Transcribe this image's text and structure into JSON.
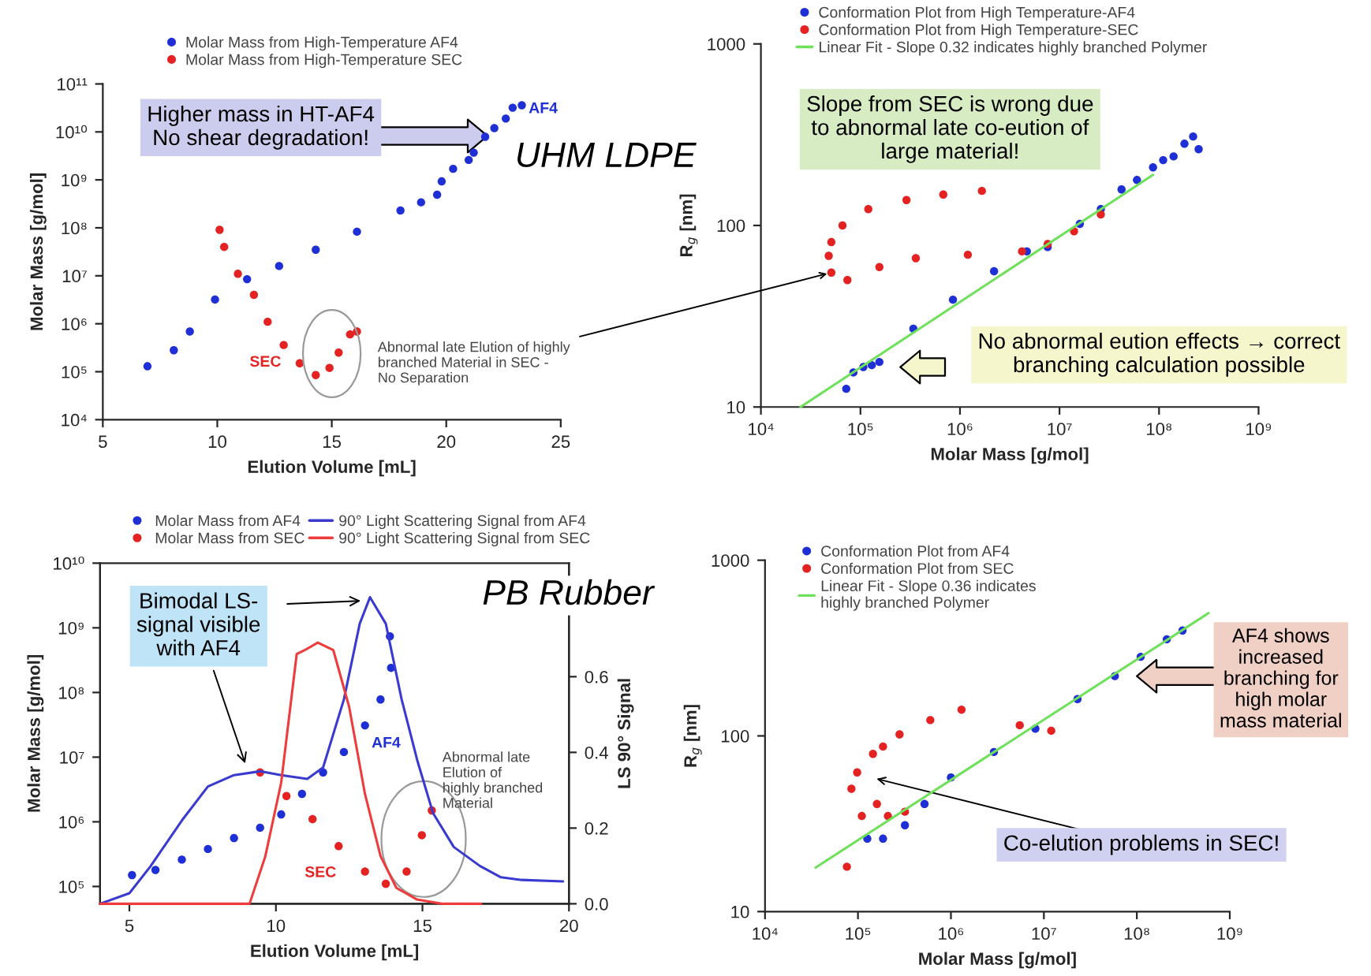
{
  "chart_data": [
    {
      "type": "scatter",
      "xlabel": "Elution Volume [mL]",
      "ylabel": "Molar Mass [g/mol]",
      "log": "y",
      "xlim": [
        5,
        25
      ],
      "xticks": [
        5,
        10,
        15,
        20,
        25
      ],
      "ylim": [
        10000.0,
        100000000000.0
      ],
      "yticks": [
        {
          "value": 10000.0,
          "label": "10⁴"
        },
        {
          "value": 100000.0,
          "label": "10⁵"
        },
        {
          "value": 1000000.0,
          "label": "10⁶"
        },
        {
          "value": 10000000.0,
          "label": "10⁷"
        },
        {
          "value": 100000000.0,
          "label": "10⁸"
        },
        {
          "value": 1000000000.0,
          "label": "10⁹"
        },
        {
          "value": 10000000000.0,
          "label": "10¹⁰"
        },
        {
          "value": 100000000000.0,
          "label": "10¹¹"
        }
      ],
      "legend": "top left",
      "series": [
        {
          "name": "Molar Mass from High-Temperature AF4",
          "marker": "circle",
          "color": "#1f2fd6",
          "x": [
            6.95,
            8.1,
            8.8,
            9.9,
            11.3,
            12.7,
            14.3,
            16.1,
            18.0,
            18.9,
            19.6,
            19.8,
            20.3,
            20.98,
            21.2,
            21.7,
            22.1,
            22.6,
            22.9,
            23.3
          ],
          "values": [
            130000.0,
            280000.0,
            690000.0,
            3200000.0,
            8500000.0,
            16000000.0,
            35000000.0,
            83000000.0,
            230000000.0,
            340000000.0,
            490000000.0,
            930000000.0,
            1700000000.0,
            2600000000.0,
            3700000000.0,
            7900000000.0,
            12000000000.0,
            19000000000.0,
            32000000000.0,
            36000000000.0
          ]
        },
        {
          "name": "Molar Mass from High-Temperature SEC",
          "marker": "circle",
          "color": "#e52222",
          "x": [
            10.1,
            10.3,
            10.9,
            11.6,
            12.2,
            12.9,
            13.6,
            14.3,
            14.9,
            15.3,
            15.8,
            16.1
          ],
          "values": [
            91000000.0,
            40000000.0,
            11000000.0,
            4000000.0,
            1100000.0,
            360000.0,
            150000.0,
            85000.0,
            120000.0,
            250000.0,
            600000.0,
            690000.0
          ]
        }
      ],
      "annotations": [
        "Higher mass in HT-AF4\nNo shear degradation!",
        "AF4",
        "SEC",
        "UHM LDPE"
      ]
    },
    {
      "type": "scatter",
      "xlabel": "Molar Mass [g/mol]",
      "ylabel": "R$_{g}$ [nm]",
      "log": "xy",
      "xlim": [
        10000.0,
        1000000000.0
      ],
      "xticks": [
        {
          "value": 10000.0,
          "label": "10⁴"
        },
        {
          "value": 100000.0,
          "label": "10⁵"
        },
        {
          "value": 1000000.0,
          "label": "10⁶"
        },
        {
          "value": 10000000.0,
          "label": "10⁷"
        },
        {
          "value": 100000000.0,
          "label": "10⁸"
        },
        {
          "value": 1000000000.0,
          "label": "10⁹"
        }
      ],
      "ylim": [
        10,
        1000
      ],
      "yticks": [
        10,
        100,
        1000
      ],
      "legend": "top left",
      "series": [
        {
          "name": "Conformation Plot from High Temperature-AF4",
          "marker": "circle",
          "color": "#1f2fd6",
          "x": [
            72000.0,
            85000.0,
            107000.0,
            130000.0,
            155000.0,
            340000.0,
            850000.0,
            2200000.0,
            4700000.0,
            7600000.0,
            16000000.0,
            26000000.0,
            42000000.0,
            60000000.0,
            87000000.0,
            110000000.0,
            140000000.0,
            180000000.0,
            220000000.0,
            250000000.0
          ],
          "values": [
            12.6,
            15.5,
            16.6,
            17,
            17.7,
            27,
            39,
            56,
            72,
            76,
            102,
            123,
            158,
            178,
            209,
            229,
            240,
            282,
            309,
            263
          ]
        },
        {
          "name": "Conformation Plot from High Temperature-SEC",
          "marker": "circle",
          "color": "#e52222",
          "x": [
            1660000.0,
            680000.0,
            290000.0,
            120000.0,
            66000.0,
            51000.0,
            48000.0,
            51000.0,
            74000.0,
            155000.0,
            360000.0,
            1200000.0,
            4200000.0,
            7600000.0,
            14000000.0,
            26000000.0
          ],
          "values": [
            155,
            148,
            138,
            123,
            100,
            81,
            68,
            55,
            50,
            59,
            66,
            69,
            72,
            79,
            93,
            115
          ]
        },
        {
          "name": "Linear Fit - Slope 0.32 indicates highly branched Polymer",
          "type": "line",
          "color": "#6ee05a",
          "x": [
            25000.0,
            87000000.0
          ],
          "values": [
            10,
            190
          ]
        }
      ],
      "annotations": [
        "Slope from SEC is wrong due\nto abnormal late co-eution of\nlarge material!",
        "No abnormal eution effects → correct\nbranching calculation possible",
        {
          "text": "Abnormal late Elution of highly\nbranched Material in SEC -\nNo Separation",
          "x": 51000.0,
          "y": 55
        }
      ]
    },
    {
      "type": "scatter",
      "xlabel": "Elution Volume [mL]",
      "ylabel": "Molar Mass [g/mol]",
      "y2label": "LS 90° Signal",
      "log": "y",
      "xlim": [
        4,
        20
      ],
      "xticks": [
        5,
        10,
        15,
        20
      ],
      "ylim": [
        54000.0,
        10000000000.0
      ],
      "yticks": [
        {
          "value": 100000.0,
          "label": "10⁵"
        },
        {
          "value": 1000000.0,
          "label": "10⁶"
        },
        {
          "value": 10000000.0,
          "label": "10⁷"
        },
        {
          "value": 100000000.0,
          "label": "10⁸"
        },
        {
          "value": 1000000000.0,
          "label": "10⁹"
        },
        {
          "value": 10000000000.0,
          "label": "10¹⁰"
        }
      ],
      "y2lim": [
        0,
        0.9
      ],
      "y2ticks": [
        {
          "value": 0,
          "label": "0.0"
        },
        0.2,
        0.4,
        0.6
      ],
      "legend": "top",
      "series": [
        {
          "name": "Molar Mass from AF4",
          "marker": "circle",
          "color": "#1f2fd6",
          "x": [
            5.09,
            5.89,
            6.79,
            7.68,
            8.57,
            9.46,
            10.18,
            10.89,
            11.61,
            12.32,
            13.04,
            13.57,
            13.93,
            13.89
          ],
          "values": [
            150000.0,
            180000.0,
            260000.0,
            380000.0,
            560000.0,
            810000.0,
            1300000.0,
            2700000.0,
            5800000.0,
            12000000.0,
            31000000.0,
            78000000.0,
            240000000.0,
            740000000.0
          ]
        },
        {
          "name": "Molar Mass from SEC",
          "marker": "circle",
          "color": "#e52222",
          "x": [
            9.46,
            10.36,
            11.25,
            12.14,
            13.04,
            13.75,
            14.46,
            14.98,
            15.32
          ],
          "values": [
            5800000.0,
            2500000.0,
            1100000.0,
            420000.0,
            170000.0,
            110000.0,
            170000.0,
            620000.0,
            1500000.0
          ]
        },
        {
          "name": "90° Light Scattering Signal from AF4",
          "type": "line",
          "axis": "y2",
          "color": "#3a3ad0",
          "x": [
            4.0,
            5.0,
            5.71,
            6.79,
            7.68,
            8.57,
            9.46,
            10.18,
            11.07,
            11.61,
            12.32,
            12.86,
            13.21,
            13.75,
            14.29,
            14.82,
            15.36,
            16.07,
            16.96,
            17.68,
            18.39,
            19.8
          ],
          "values": [
            0,
            0.028,
            0.098,
            0.22,
            0.31,
            0.34,
            0.35,
            0.34,
            0.33,
            0.36,
            0.54,
            0.74,
            0.81,
            0.74,
            0.54,
            0.38,
            0.24,
            0.15,
            0.1,
            0.07,
            0.063,
            0.059
          ]
        },
        {
          "name": "90° Light Scattering Signal from SEC",
          "type": "line",
          "axis": "y2",
          "color": "#ee3b3b",
          "x": [
            4.0,
            9.1,
            9.64,
            10.18,
            10.71,
            10.98,
            11.43,
            11.96,
            12.5,
            13.04,
            13.57,
            14.11,
            14.82,
            15.7,
            17.0
          ],
          "values": [
            0,
            0,
            0.126,
            0.32,
            0.66,
            0.67,
            0.69,
            0.67,
            0.52,
            0.29,
            0.126,
            0.042,
            0.011,
            0,
            0
          ]
        }
      ],
      "annotations": [
        {
          "text": "Bimodal LS-\nsignal visible\nwith AF4",
          "x": 9.0,
          "y": 6900000.0
        },
        "AF4",
        "SEC",
        "Abnormal late\nElution of\nhighly branched\nMaterial",
        "PB Rubber"
      ]
    },
    {
      "type": "scatter",
      "xlabel": "Molar Mass [g/mol]",
      "ylabel": "R$_{g}$ [nm]",
      "log": "xy",
      "xlim": [
        10000.0,
        1000000000.0
      ],
      "xticks": [
        {
          "value": 10000.0,
          "label": "10⁴"
        },
        {
          "value": 100000.0,
          "label": "10⁵"
        },
        {
          "value": 1000000.0,
          "label": "10⁶"
        },
        {
          "value": 10000000.0,
          "label": "10⁷"
        },
        {
          "value": 100000000.0,
          "label": "10⁸"
        },
        {
          "value": 1000000000.0,
          "label": "10⁹"
        }
      ],
      "ylim": [
        10,
        1000
      ],
      "yticks": [
        10,
        100,
        1000
      ],
      "legend": "top left",
      "series": [
        {
          "name": "Conformation Plot from AF4",
          "marker": "circle",
          "color": "#1f2fd6",
          "x": [
            126000.0,
            186000.0,
            320000.0,
            520000.0,
            1000000.0,
            2900000.0,
            8100000.0,
            23000000.0,
            58000000.0,
            110000000.0,
            210000000.0,
            310000000.0
          ],
          "values": [
            26,
            26,
            31,
            41,
            58,
            81,
            110,
            162,
            219,
            282,
            355,
            398
          ]
        },
        {
          "name": "Conformation Plot from SEC",
          "marker": "circle",
          "color": "#e52222",
          "x": [
            76000.0,
            110000.0,
            85000.0,
            98000.0,
            145000.0,
            186000.0,
            160000.0,
            210000.0,
            320000.0,
            280000.0,
            600000.0,
            1300000.0,
            5500000.0,
            12000000.0
          ],
          "values": [
            18,
            35,
            50,
            62,
            79,
            87,
            41,
            35,
            37,
            102,
            123,
            141,
            115,
            107
          ]
        },
        {
          "name": "Linear Fit - Slope 0.36 indicates\nhighly branched Polymer",
          "type": "line",
          "color": "#6ee05a",
          "x": [
            35000.0,
            590000000.0
          ],
          "values": [
            17.8,
            500
          ]
        }
      ],
      "annotations": [
        "Co-elution problems in SEC!",
        "AF4 shows\nincreased\nbranching for\nhigh molar\nmass material"
      ]
    }
  ]
}
